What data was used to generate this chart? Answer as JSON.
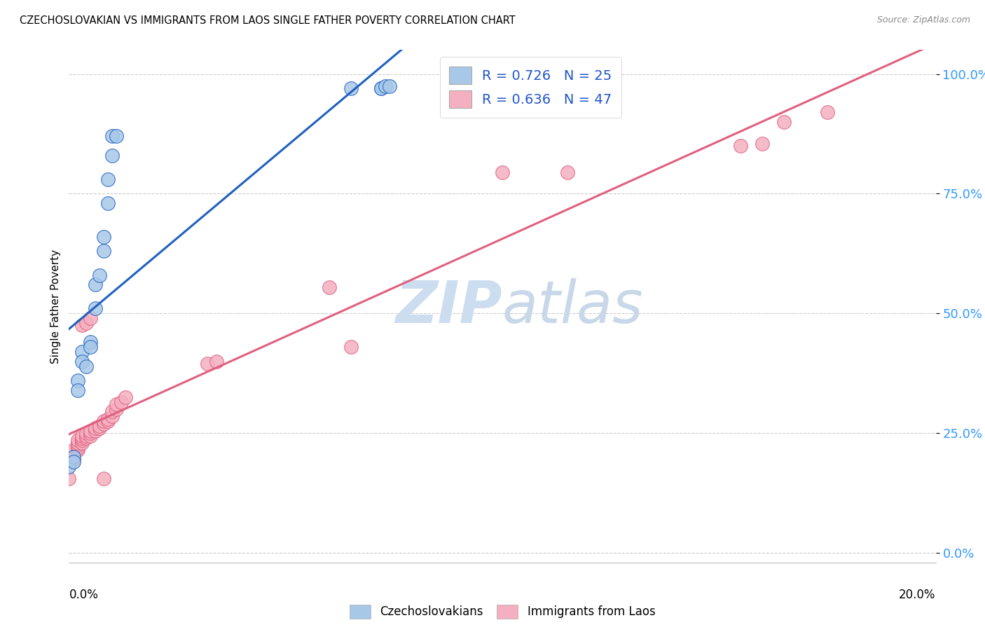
{
  "title": "CZECHOSLOVAKIAN VS IMMIGRANTS FROM LAOS SINGLE FATHER POVERTY CORRELATION CHART",
  "source": "Source: ZipAtlas.com",
  "ylabel": "Single Father Poverty",
  "yticks_labels": [
    "0.0%",
    "25.0%",
    "50.0%",
    "75.0%",
    "100.0%"
  ],
  "ytick_vals": [
    0.0,
    0.25,
    0.5,
    0.75,
    1.0
  ],
  "xticks_labels": [
    "0.0%",
    "20.0%"
  ],
  "xrange": [
    0.0,
    0.2
  ],
  "yrange": [
    -0.02,
    1.05
  ],
  "legend1_r": "R = 0.726",
  "legend1_n": "N = 25",
  "legend2_r": "R = 0.636",
  "legend2_n": "N = 47",
  "color_czech": "#a8c8e8",
  "color_laos": "#f4b0c0",
  "color_line_czech": "#2060c0",
  "color_line_laos": "#e06080",
  "watermark_zip": "ZIP",
  "watermark_atlas": "atlas",
  "watermark_color": "#ccddf0",
  "legend_label1": "Czechoslovakians",
  "legend_label2": "Immigrants from Laos",
  "czech_x": [
    0.0,
    0.001,
    0.001,
    0.002,
    0.002,
    0.003,
    0.003,
    0.004,
    0.005,
    0.005,
    0.006,
    0.006,
    0.007,
    0.008,
    0.008,
    0.009,
    0.009,
    0.01,
    0.01,
    0.011,
    0.065,
    0.072,
    0.072,
    0.073,
    0.074
  ],
  "czech_y": [
    0.18,
    0.2,
    0.19,
    0.36,
    0.34,
    0.42,
    0.4,
    0.39,
    0.44,
    0.43,
    0.51,
    0.56,
    0.58,
    0.63,
    0.66,
    0.73,
    0.78,
    0.83,
    0.87,
    0.87,
    0.97,
    0.97,
    0.97,
    0.975,
    0.975
  ],
  "laos_x": [
    0.0,
    0.001,
    0.001,
    0.001,
    0.002,
    0.002,
    0.002,
    0.002,
    0.002,
    0.003,
    0.003,
    0.003,
    0.003,
    0.004,
    0.004,
    0.004,
    0.005,
    0.005,
    0.005,
    0.006,
    0.006,
    0.007,
    0.007,
    0.008,
    0.008,
    0.009,
    0.009,
    0.01,
    0.01,
    0.011,
    0.011,
    0.012,
    0.013,
    0.032,
    0.034,
    0.06,
    0.065,
    0.1,
    0.115,
    0.155,
    0.16,
    0.165,
    0.175,
    0.003,
    0.004,
    0.005,
    0.008
  ],
  "laos_y": [
    0.155,
    0.195,
    0.2,
    0.215,
    0.215,
    0.22,
    0.225,
    0.23,
    0.235,
    0.23,
    0.235,
    0.24,
    0.245,
    0.24,
    0.245,
    0.25,
    0.245,
    0.25,
    0.255,
    0.255,
    0.26,
    0.26,
    0.265,
    0.27,
    0.275,
    0.275,
    0.28,
    0.285,
    0.295,
    0.3,
    0.31,
    0.315,
    0.325,
    0.395,
    0.4,
    0.555,
    0.43,
    0.795,
    0.795,
    0.85,
    0.855,
    0.9,
    0.92,
    0.475,
    0.48,
    0.49,
    0.155
  ]
}
